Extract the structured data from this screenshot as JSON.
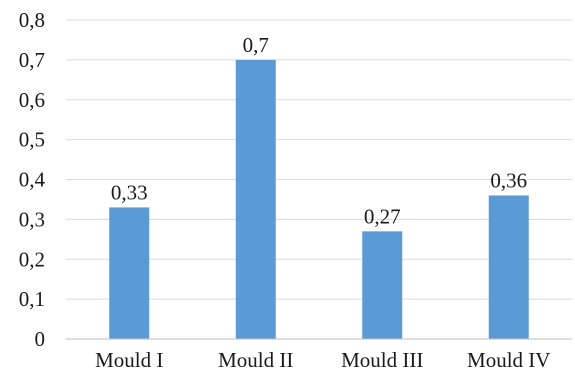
{
  "chart_data": {
    "type": "bar",
    "categories": [
      "Mould I",
      "Mould II",
      "Mould III",
      "Mould IV"
    ],
    "values": [
      0.33,
      0.7,
      0.27,
      0.36
    ],
    "value_labels": [
      "0,33",
      "0,7",
      "0,27",
      "0,36"
    ],
    "y_tick_labels": [
      "0",
      "0,1",
      "0,2",
      "0,3",
      "0,4",
      "0,5",
      "0,6",
      "0,7",
      "0,8"
    ],
    "y_ticks": [
      0,
      0.1,
      0.2,
      0.3,
      0.4,
      0.5,
      0.6,
      0.7,
      0.8
    ],
    "ylim": [
      0,
      0.8
    ],
    "title": "",
    "xlabel": "",
    "ylabel": "",
    "grid": true,
    "legend": "none",
    "bar_color": "#5b9bd5"
  }
}
